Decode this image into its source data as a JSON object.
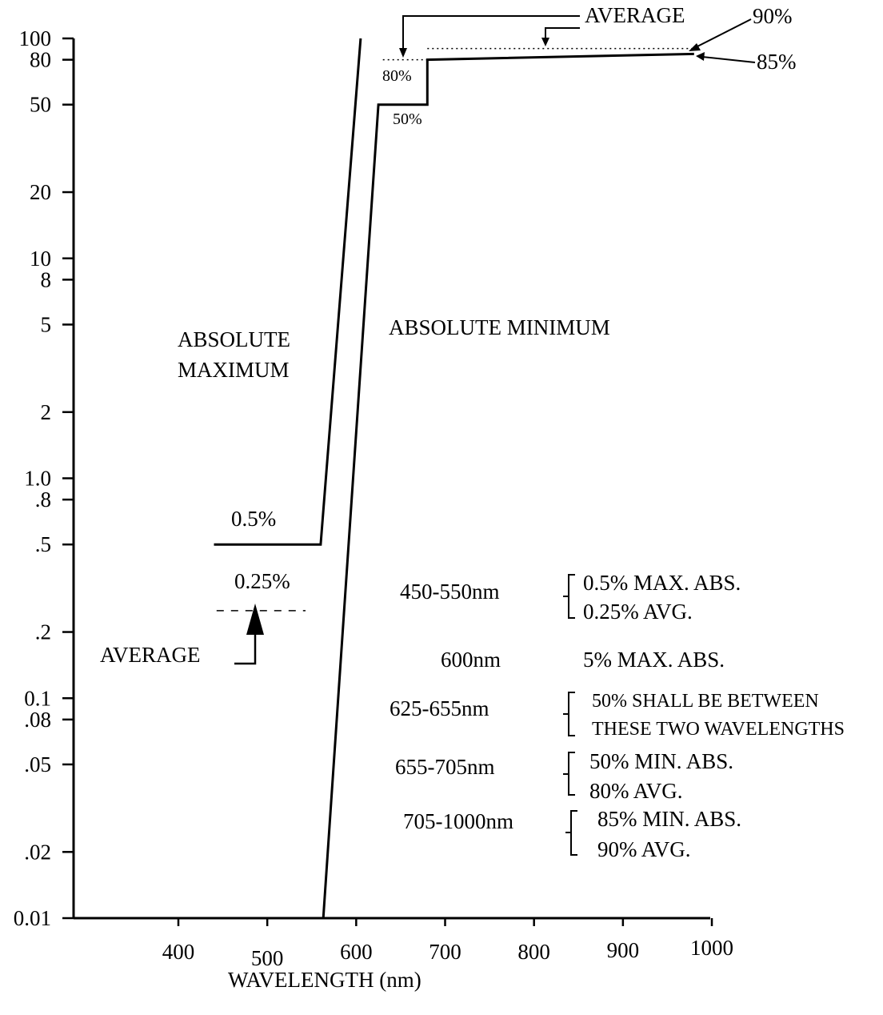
{
  "chart_data": {
    "type": "line",
    "xlabel": "WAVELENGTH (nm)",
    "ylabel": "",
    "scale": "log",
    "xlim": [
      300,
      1000
    ],
    "ylim": [
      0.01,
      100
    ],
    "x_ticks": [
      {
        "value": 400,
        "label": "400"
      },
      {
        "value": 500,
        "label": "500"
      },
      {
        "value": 600,
        "label": "600"
      },
      {
        "value": 700,
        "label": "700"
      },
      {
        "value": 800,
        "label": "800"
      },
      {
        "value": 900,
        "label": "900"
      },
      {
        "value": 1000,
        "label": "1000"
      }
    ],
    "y_ticks": [
      {
        "value": 100,
        "label": "100"
      },
      {
        "value": 80,
        "label": "80"
      },
      {
        "value": 50,
        "label": "50"
      },
      {
        "value": 20,
        "label": "20"
      },
      {
        "value": 10,
        "label": "10"
      },
      {
        "value": 8,
        "label": "8"
      },
      {
        "value": 5,
        "label": "5"
      },
      {
        "value": 2,
        "label": "2"
      },
      {
        "value": 1,
        "label": "1.0"
      },
      {
        "value": 0.8,
        "label": ".8"
      },
      {
        "value": 0.5,
        "label": ".5"
      },
      {
        "value": 0.2,
        "label": ".2"
      },
      {
        "value": 0.1,
        "label": "0.1"
      },
      {
        "value": 0.08,
        "label": ".08"
      },
      {
        "value": 0.05,
        "label": ".05"
      },
      {
        "value": 0.02,
        "label": ".02"
      },
      {
        "value": 0.01,
        "label": "0.01"
      }
    ],
    "series": [
      {
        "key": "absolute-maximum",
        "name": "ABSOLUTE MAXIMUM",
        "x": [
          440,
          560,
          605
        ],
        "y": [
          0.5,
          0.5,
          100
        ]
      },
      {
        "key": "absolute-minimum",
        "name": "ABSOLUTE MINIMUM",
        "x": [
          563,
          625,
          680,
          680,
          980
        ],
        "y": [
          0.01,
          50,
          50,
          80,
          85
        ]
      },
      {
        "key": "average-450-550",
        "name": "AVERAGE",
        "style": "dashed",
        "x": [
          443,
          543
        ],
        "y": [
          0.25,
          0.25
        ]
      },
      {
        "key": "average-655-705",
        "name": "",
        "style": "dotted",
        "x": [
          630,
          680
        ],
        "y": [
          80,
          80
        ]
      },
      {
        "key": "average-705-1000",
        "name": "",
        "style": "dotted",
        "x": [
          680,
          980
        ],
        "y": [
          90,
          90
        ]
      }
    ],
    "annotations": {
      "abs_max": [
        "ABSOLUTE",
        "MAXIMUM"
      ],
      "abs_min": "ABSOLUTE MINIMUM",
      "p05": "0.5%",
      "p025": "0.25%",
      "average_low": "AVERAGE",
      "average_top": "AVERAGE",
      "p90": "90%",
      "p85": "85%",
      "p80": "80%",
      "p50": "50%"
    },
    "spec_table": [
      {
        "range": "450-550nm",
        "lines": [
          "0.5% MAX. ABS.",
          "0.25% AVG."
        ]
      },
      {
        "range": "600nm",
        "lines": [
          "5% MAX. ABS."
        ]
      },
      {
        "range": "625-655nm",
        "lines": [
          "50% SHALL BE  BETWEEN",
          "THESE TWO WAVELENGTHS"
        ]
      },
      {
        "range": "655-705nm",
        "lines": [
          "50% MIN. ABS.",
          "80% AVG."
        ]
      },
      {
        "range": "705-1000nm",
        "lines": [
          "85% MIN. ABS.",
          "90% AVG."
        ]
      }
    ]
  }
}
